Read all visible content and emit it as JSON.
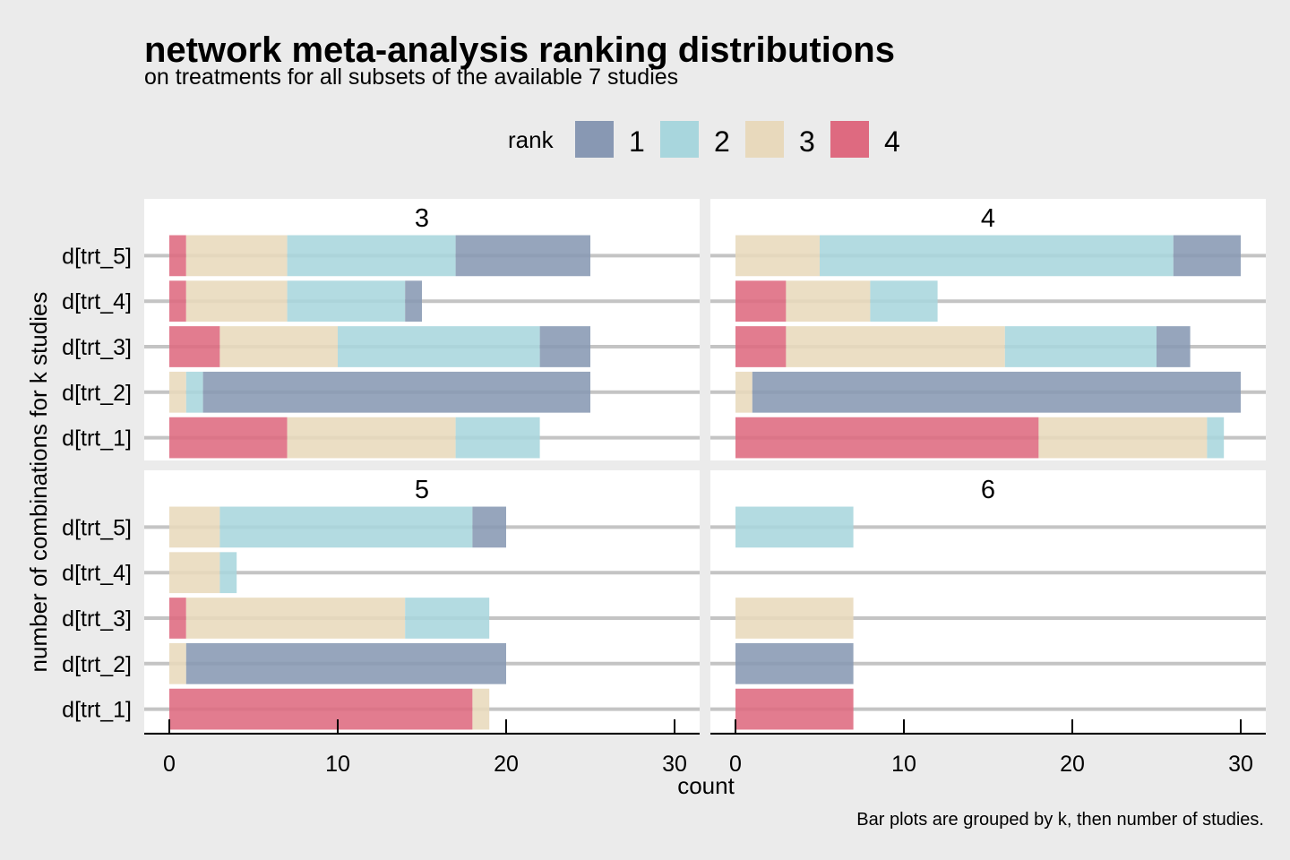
{
  "chart_data": {
    "type": "bar",
    "orientation": "horizontal",
    "stacked": true,
    "title": "network meta-analysis ranking distributions",
    "subtitle": "on treatments for all subsets of the available 7 studies",
    "xlabel": "count",
    "ylabel": "number of combinations for k studies",
    "caption": "Bar plots are grouped by k, then number of studies.",
    "xlim": [
      0,
      30
    ],
    "xticks": [
      "0",
      "10",
      "20",
      "30"
    ],
    "legend": {
      "title": "rank",
      "position": "top",
      "entries": [
        {
          "label": "1",
          "color": "#8898b3"
        },
        {
          "label": "2",
          "color": "#a8d6dd"
        },
        {
          "label": "3",
          "color": "#e8d9bc"
        },
        {
          "label": "4",
          "color": "#de6a80"
        }
      ]
    },
    "categories": [
      "d[trt_5]",
      "d[trt_4]",
      "d[trt_3]",
      "d[trt_2]",
      "d[trt_1]"
    ],
    "stack_order": [
      "4",
      "3",
      "2",
      "1"
    ],
    "panels": [
      {
        "label": "3",
        "rows": [
          {
            "category": "d[trt_5]",
            "counts": {
              "4": 1,
              "3": 6,
              "2": 10,
              "1": 8
            }
          },
          {
            "category": "d[trt_4]",
            "counts": {
              "4": 1,
              "3": 6,
              "2": 7,
              "1": 1
            }
          },
          {
            "category": "d[trt_3]",
            "counts": {
              "4": 3,
              "3": 7,
              "2": 12,
              "1": 3
            }
          },
          {
            "category": "d[trt_2]",
            "counts": {
              "4": 0,
              "3": 1,
              "2": 1,
              "1": 23
            }
          },
          {
            "category": "d[trt_1]",
            "counts": {
              "4": 7,
              "3": 10,
              "2": 5,
              "1": 0
            }
          }
        ]
      },
      {
        "label": "4",
        "rows": [
          {
            "category": "d[trt_5]",
            "counts": {
              "4": 0,
              "3": 5,
              "2": 21,
              "1": 4
            }
          },
          {
            "category": "d[trt_4]",
            "counts": {
              "4": 3,
              "3": 5,
              "2": 4,
              "1": 0
            }
          },
          {
            "category": "d[trt_3]",
            "counts": {
              "4": 3,
              "3": 13,
              "2": 9,
              "1": 2
            }
          },
          {
            "category": "d[trt_2]",
            "counts": {
              "4": 0,
              "3": 1,
              "2": 0,
              "1": 29
            }
          },
          {
            "category": "d[trt_1]",
            "counts": {
              "4": 18,
              "3": 10,
              "2": 1,
              "1": 0
            }
          }
        ]
      },
      {
        "label": "5",
        "rows": [
          {
            "category": "d[trt_5]",
            "counts": {
              "4": 0,
              "3": 3,
              "2": 15,
              "1": 2
            }
          },
          {
            "category": "d[trt_4]",
            "counts": {
              "4": 0,
              "3": 3,
              "2": 1,
              "1": 0
            }
          },
          {
            "category": "d[trt_3]",
            "counts": {
              "4": 1,
              "3": 13,
              "2": 5,
              "1": 0
            }
          },
          {
            "category": "d[trt_2]",
            "counts": {
              "4": 0,
              "3": 1,
              "2": 0,
              "1": 19
            }
          },
          {
            "category": "d[trt_1]",
            "counts": {
              "4": 18,
              "3": 1,
              "2": 0,
              "1": 0
            }
          }
        ]
      },
      {
        "label": "6",
        "rows": [
          {
            "category": "d[trt_5]",
            "counts": {
              "4": 0,
              "3": 0,
              "2": 7,
              "1": 0
            }
          },
          {
            "category": "d[trt_4]",
            "counts": {
              "4": 0,
              "3": 0,
              "2": 0,
              "1": 0
            }
          },
          {
            "category": "d[trt_3]",
            "counts": {
              "4": 0,
              "3": 7,
              "2": 0,
              "1": 0
            }
          },
          {
            "category": "d[trt_2]",
            "counts": {
              "4": 0,
              "3": 0,
              "2": 0,
              "1": 7
            }
          },
          {
            "category": "d[trt_1]",
            "counts": {
              "4": 7,
              "3": 0,
              "2": 0,
              "1": 0
            }
          }
        ]
      }
    ]
  }
}
